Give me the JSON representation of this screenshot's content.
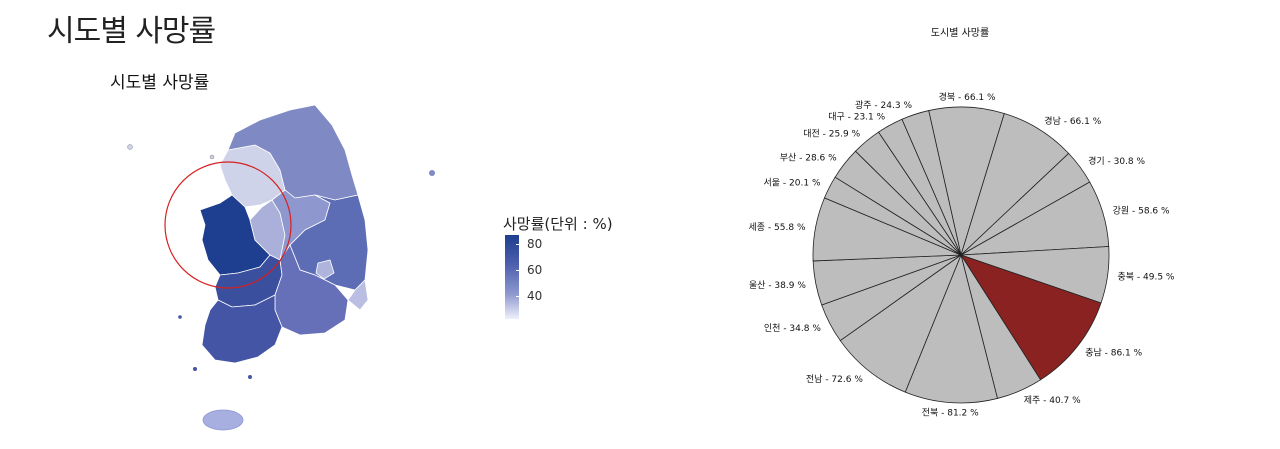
{
  "page": {
    "title": "시도별 사망률"
  },
  "map": {
    "title": "시도별 사망률",
    "legend": {
      "title": "사망률(단위 : %)",
      "ticks": [
        "80",
        "60",
        "40"
      ]
    },
    "highlight_region": "충남"
  },
  "chart_data": {
    "type": "pie",
    "title": "도시별 사망률",
    "slices": [
      {
        "label": "경북 - 66.1 %",
        "region": "경북",
        "value": 66.1,
        "color": "#bdbdbd"
      },
      {
        "label": "경남 - 66.1 %",
        "region": "경남",
        "value": 66.1,
        "color": "#bdbdbd"
      },
      {
        "label": "경기 - 30.8 %",
        "region": "경기",
        "value": 30.8,
        "color": "#bdbdbd"
      },
      {
        "label": "강원 - 58.6 %",
        "region": "강원",
        "value": 58.6,
        "color": "#bdbdbd"
      },
      {
        "label": "충북 - 49.5 %",
        "region": "충북",
        "value": 49.5,
        "color": "#bdbdbd"
      },
      {
        "label": "충남 - 86.1 %",
        "region": "충남",
        "value": 86.1,
        "color": "#8b2222"
      },
      {
        "label": "제주 - 40.7 %",
        "region": "제주",
        "value": 40.7,
        "color": "#bdbdbd"
      },
      {
        "label": "전북 - 81.2 %",
        "region": "전북",
        "value": 81.2,
        "color": "#bdbdbd"
      },
      {
        "label": "전남 - 72.6 %",
        "region": "전남",
        "value": 72.6,
        "color": "#bdbdbd"
      },
      {
        "label": "인천 - 34.8 %",
        "region": "인천",
        "value": 34.8,
        "color": "#bdbdbd"
      },
      {
        "label": "울산 - 38.9 %",
        "region": "울산",
        "value": 38.9,
        "color": "#bdbdbd"
      },
      {
        "label": "세종 - 55.8 %",
        "region": "세종",
        "value": 55.8,
        "color": "#bdbdbd"
      },
      {
        "label": "서울 - 20.1 %",
        "region": "서울",
        "value": 20.1,
        "color": "#bdbdbd"
      },
      {
        "label": "부산 - 28.6 %",
        "region": "부산",
        "value": 28.6,
        "color": "#bdbdbd"
      },
      {
        "label": "대전 - 25.9 %",
        "region": "대전",
        "value": 25.9,
        "color": "#bdbdbd"
      },
      {
        "label": "대구 - 23.1 %",
        "region": "대구",
        "value": 23.1,
        "color": "#bdbdbd"
      },
      {
        "label": "광주 - 24.3 %",
        "region": "광주",
        "value": 24.3,
        "color": "#bdbdbd"
      }
    ]
  }
}
